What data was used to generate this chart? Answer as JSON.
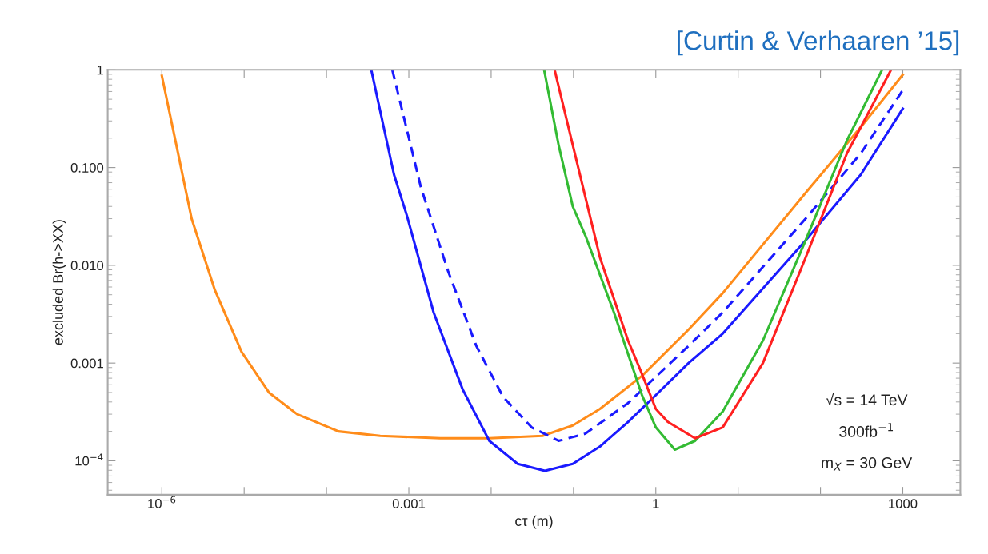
{
  "chart_data": {
    "type": "line",
    "title": "[Curtin & Verhaaren ’15]",
    "xlabel": "cτ (m)",
    "ylabel": "excluded Br(h->XX)",
    "log": "xy",
    "grid": false,
    "legend": false,
    "marker": "none",
    "xlim": [
      2.2e-07,
      5000
    ],
    "ylim": [
      4.5e-05,
      1
    ],
    "xticks": [
      {
        "value": 1e-06,
        "label": "10$^{−6}$"
      },
      {
        "value": 1e-05,
        "label": null
      },
      {
        "value": 0.0001,
        "label": null
      },
      0.001,
      {
        "value": 0.01,
        "label": null
      },
      {
        "value": 0.1,
        "label": null
      },
      1,
      {
        "value": 10,
        "label": null
      },
      {
        "value": 100,
        "label": null
      },
      1000
    ],
    "yticks": [
      {
        "value": 0.0001,
        "label": "10$^{−4}$"
      },
      {
        "value": 0.001,
        "label": "0.001"
      },
      {
        "value": 0.01,
        "label": "0.010"
      },
      {
        "value": 0.1,
        "label": "0.100"
      },
      1
    ],
    "annotations": [
      "√s = 14 TeV",
      "300fb$^{−1}$",
      "m$_{X}$ = 30 GeV"
    ],
    "series": [
      {
        "color": "#ff8c1a",
        "line_style": "solid",
        "x": [
          1e-06,
          1.5e-06,
          2.3e-06,
          4.4e-06,
          9.3e-06,
          2e-05,
          4.4e-05,
          0.00014,
          0.00045,
          0.0024,
          0.0095,
          0.042,
          0.098,
          0.21,
          0.68,
          2.5,
          6.5,
          66,
          310,
          1000
        ],
        "values": [
          0.87,
          0.17,
          0.03,
          0.0056,
          0.0013,
          0.0005,
          0.0003,
          0.0002,
          0.00018,
          0.00017,
          0.00017,
          0.00018,
          0.00023,
          0.00034,
          0.00074,
          0.0022,
          0.0052,
          0.055,
          0.26,
          0.89
        ]
      },
      {
        "color": "#1a1aff",
        "line_style": "solid",
        "x": [
          0.00035,
          0.00066,
          0.00095,
          0.002,
          0.0045,
          0.0095,
          0.021,
          0.045,
          0.098,
          0.21,
          0.46,
          1,
          2.5,
          6.5,
          66,
          310,
          1000
        ],
        "values": [
          1,
          0.085,
          0.032,
          0.0033,
          0.00054,
          0.00016,
          9.3e-05,
          7.9e-05,
          9.3e-05,
          0.00014,
          0.00025,
          0.00047,
          0.001,
          0.002,
          0.018,
          0.085,
          0.4
        ]
      },
      {
        "color": "#1a1aff",
        "line_style": "dashed",
        "x": [
          0.00063,
          0.0014,
          0.003,
          0.0066,
          0.014,
          0.031,
          0.066,
          0.14,
          0.46,
          2.5,
          6.5,
          66,
          310,
          1000
        ],
        "values": [
          1,
          0.063,
          0.0087,
          0.0015,
          0.00045,
          0.00022,
          0.00016,
          0.00019,
          0.00039,
          0.0015,
          0.0033,
          0.03,
          0.14,
          0.62
        ]
      },
      {
        "color": "#33bb33",
        "line_style": "solid",
        "x": [
          0.044,
          0.066,
          0.098,
          0.14,
          0.31,
          0.68,
          1,
          1.7,
          3.0,
          6.5,
          20,
          66,
          210,
          560
        ],
        "values": [
          1,
          0.17,
          0.04,
          0.02,
          0.0033,
          0.00047,
          0.00022,
          0.00013,
          0.00016,
          0.00032,
          0.0017,
          0.018,
          0.19,
          1
        ]
      },
      {
        "color": "#ff2020",
        "line_style": "solid",
        "x": [
          0.059,
          0.098,
          0.21,
          0.46,
          0.65,
          1,
          1.4,
          3.0,
          6.5,
          20,
          66,
          210,
          720
        ],
        "values": [
          1,
          0.17,
          0.012,
          0.0017,
          0.00085,
          0.00034,
          0.00025,
          0.00017,
          0.00022,
          0.001,
          0.012,
          0.14,
          1
        ]
      }
    ]
  }
}
